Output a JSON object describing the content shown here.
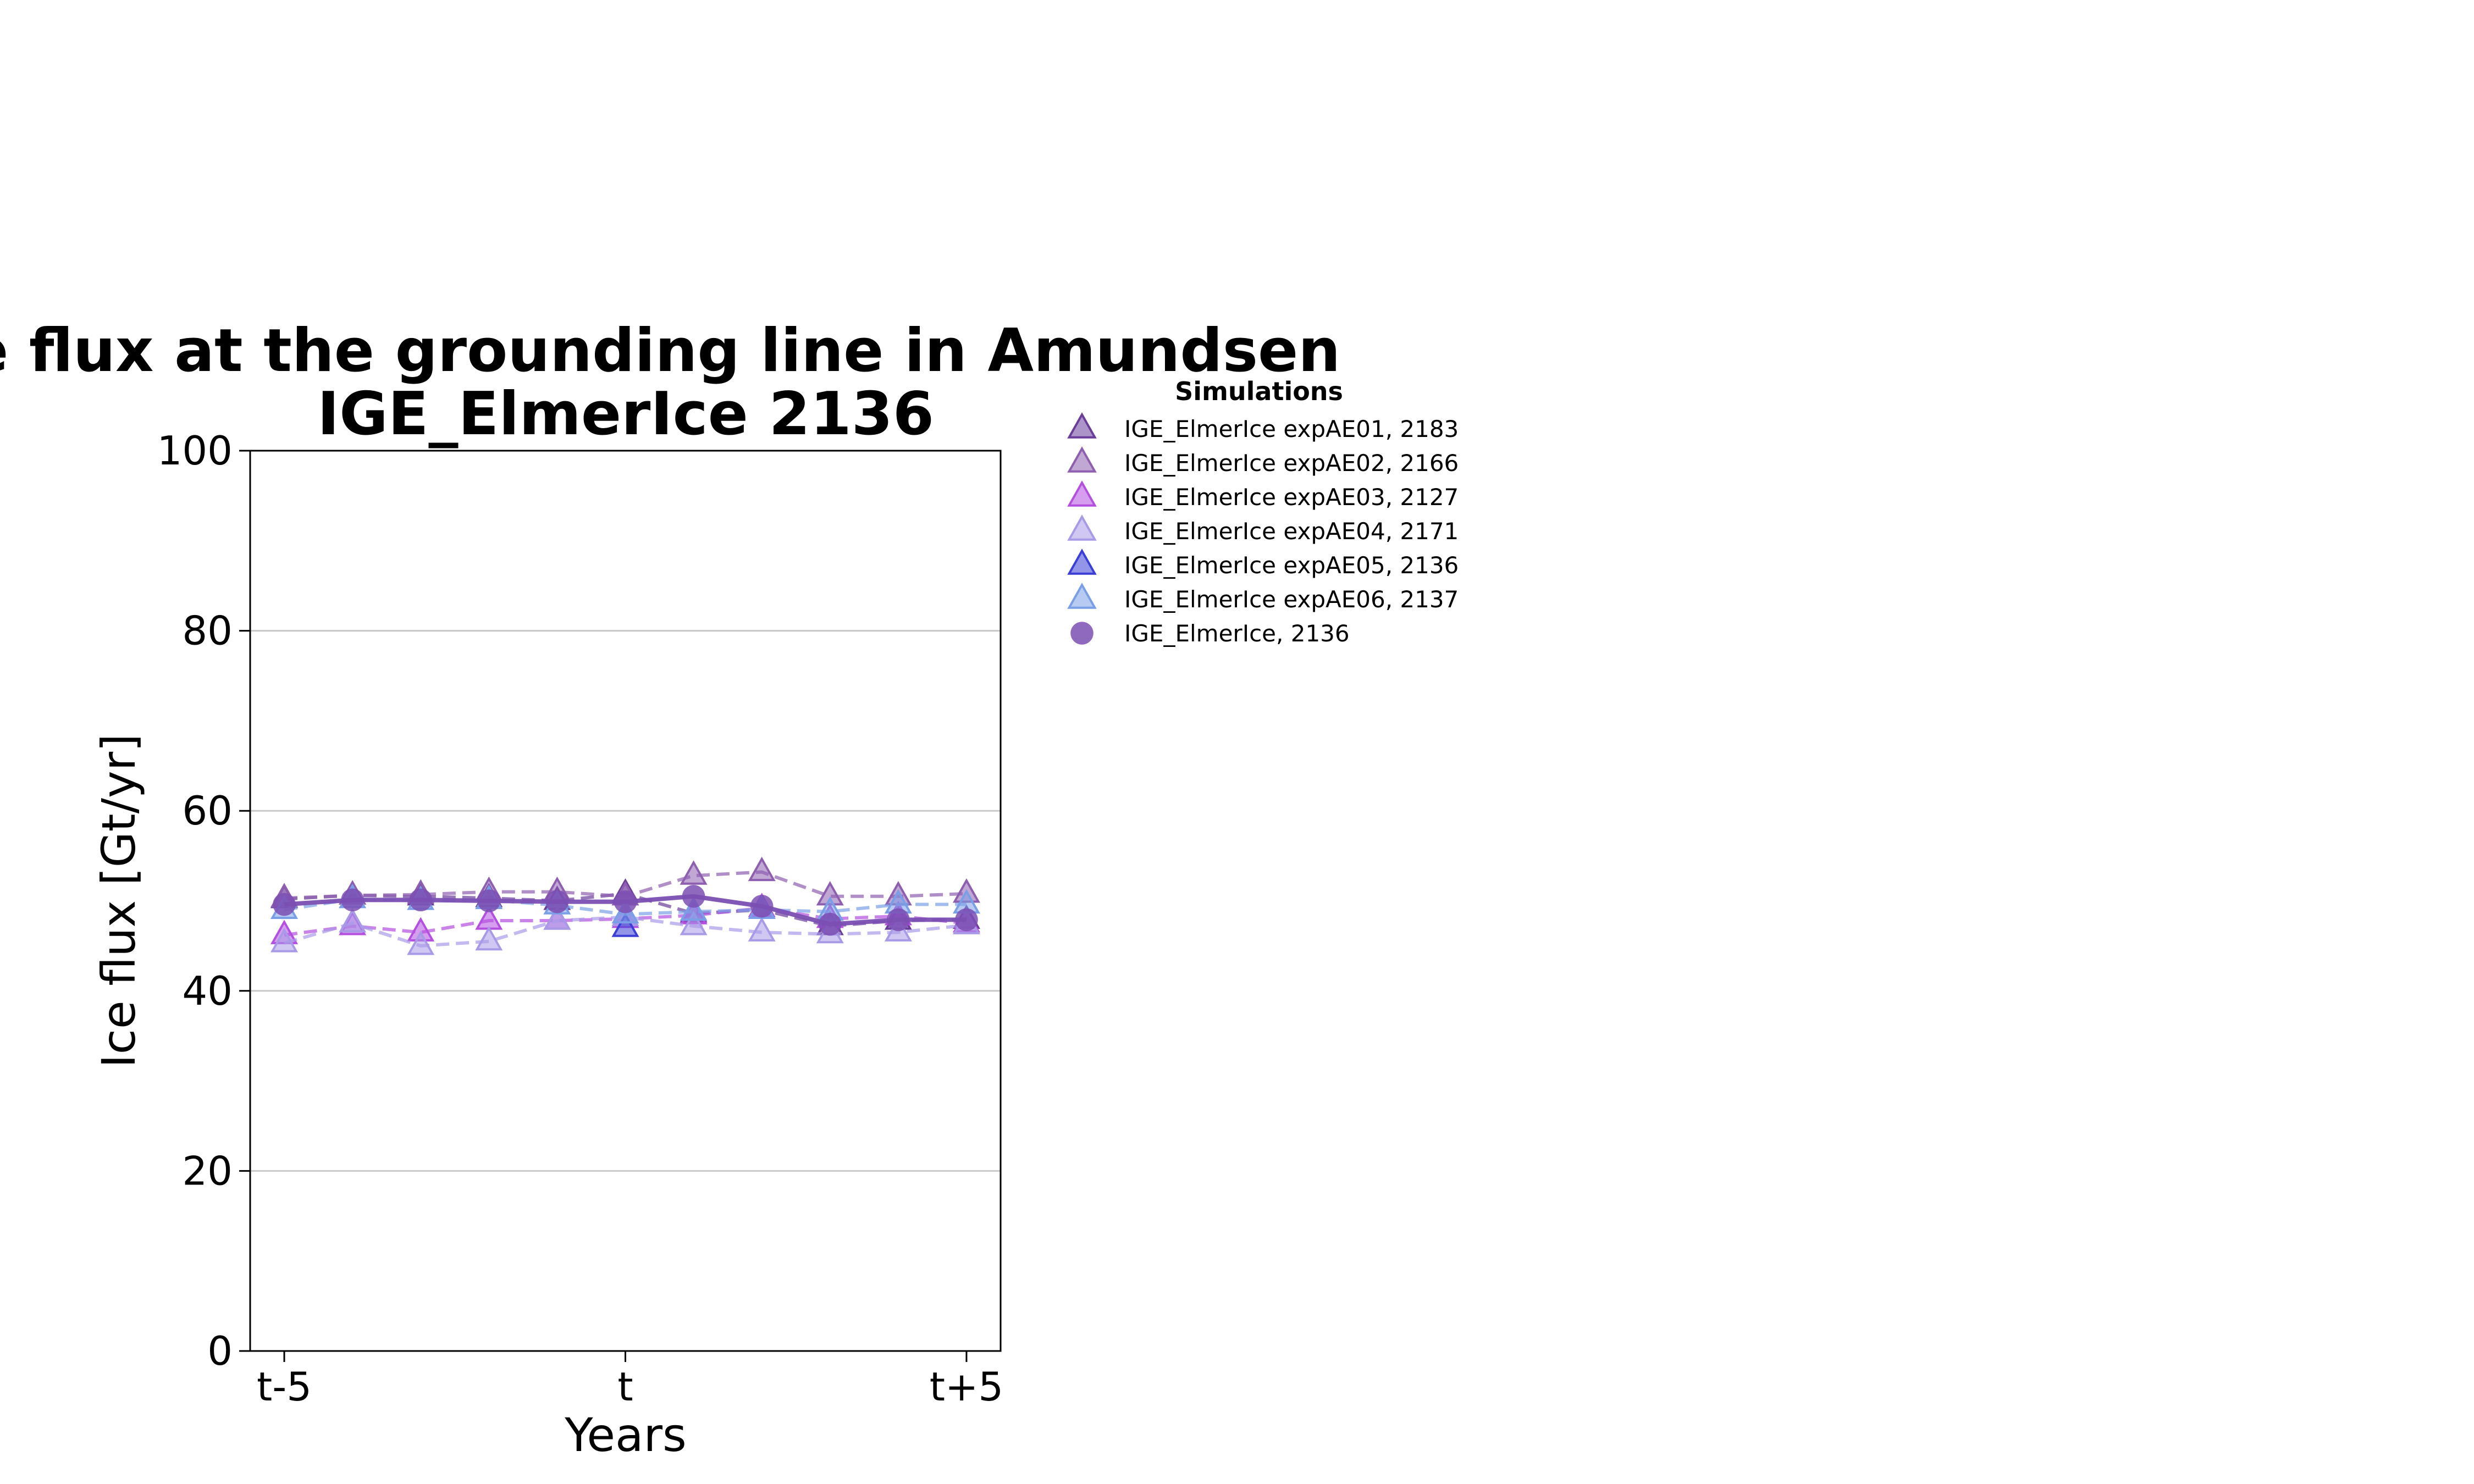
{
  "chart_data": {
    "type": "line",
    "title_line1": "Ice flux at the grounding line in Amundsen",
    "title_line2": "IGE_ElmerIce 2136",
    "xlabel": "Years",
    "ylabel": "Ice flux [Gt/yr]",
    "x": [
      -5,
      -4,
      -3,
      -2,
      -1,
      0,
      1,
      2,
      3,
      4,
      5
    ],
    "xlim": [
      -5.5,
      5.5
    ],
    "ylim": [
      0,
      100
    ],
    "yticks": [
      0,
      20,
      40,
      60,
      80,
      100
    ],
    "xticks": [
      {
        "value": -5,
        "label": "t-5"
      },
      {
        "value": 0,
        "label": "t"
      },
      {
        "value": 5,
        "label": "t+5"
      }
    ],
    "grid": "horizontal",
    "legend": {
      "title": "Simulations",
      "placement": "outside-right"
    },
    "series": [
      {
        "name": "IGE_ElmerIce expAE01, 2183",
        "color": "#6a3d9a",
        "marker": "triangle",
        "linestyle": "dashed",
        "values": [
          50.2,
          50.6,
          50.5,
          50.3,
          50.0,
          50.8,
          48.6,
          49.0,
          47.2,
          47.8,
          47.9
        ]
      },
      {
        "name": "IGE_ElmerIce expAE02, 2166",
        "color": "#8e5fb0",
        "marker": "triangle",
        "linestyle": "dashed",
        "values": [
          50.3,
          50.6,
          50.7,
          51.0,
          51.0,
          50.5,
          52.8,
          53.2,
          50.5,
          50.5,
          50.8
        ]
      },
      {
        "name": "IGE_ElmerIce expAE03, 2127",
        "color": "#b44fe0",
        "marker": "triangle",
        "linestyle": "dashed",
        "values": [
          46.2,
          47.2,
          46.5,
          47.8,
          47.8,
          48.0,
          48.4,
          49.2,
          48.0,
          48.3,
          47.5
        ]
      },
      {
        "name": "IGE_ElmerIce expAE04, 2171",
        "color": "#a99ae8",
        "marker": "triangle",
        "linestyle": "dashed",
        "values": [
          45.3,
          47.5,
          45.0,
          45.5,
          47.8,
          48.2,
          47.2,
          46.5,
          46.3,
          46.5,
          47.3
        ]
      },
      {
        "name": "IGE_ElmerIce expAE05, 2136",
        "color": "#3b3fd6",
        "marker": "triangle",
        "linestyle": "dashed",
        "values": [
          null,
          null,
          null,
          null,
          null,
          47.0,
          null,
          null,
          null,
          null,
          null
        ]
      },
      {
        "name": "IGE_ElmerIce expAE06, 2137",
        "color": "#7b9fe6",
        "marker": "triangle",
        "linestyle": "dashed",
        "values": [
          49.0,
          50.2,
          50.0,
          50.1,
          49.5,
          48.5,
          48.8,
          49.0,
          48.8,
          49.6,
          49.6
        ]
      },
      {
        "name": "IGE_ElmerIce, 2136",
        "color": "#7b4fb3",
        "marker": "circle",
        "linestyle": "solid",
        "values": [
          49.6,
          50.1,
          50.1,
          50.0,
          49.9,
          49.9,
          50.5,
          49.4,
          47.4,
          47.9,
          47.9
        ]
      }
    ]
  }
}
